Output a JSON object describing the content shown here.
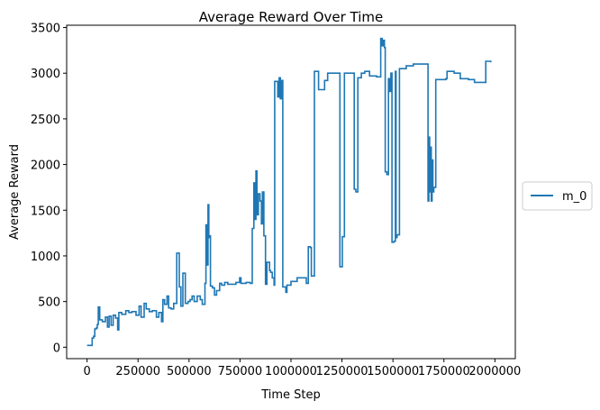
{
  "chart_data": {
    "type": "line",
    "title": "Average Reward Over Time",
    "xlabel": "Time Step",
    "ylabel": "Average Reward",
    "xlim": [
      -100000,
      2100000
    ],
    "ylim": [
      -125,
      3525
    ],
    "xticks": [
      0,
      250000,
      500000,
      750000,
      1000000,
      1250000,
      1500000,
      1750000,
      2000000
    ],
    "xtick_labels": [
      "0",
      "250000",
      "500000",
      "750000",
      "1000000",
      "1250000",
      "1500000",
      "1750000",
      "2000000"
    ],
    "yticks": [
      0,
      500,
      1000,
      1500,
      2000,
      2500,
      3000,
      3500
    ],
    "ytick_labels": [
      "0",
      "500",
      "1000",
      "1500",
      "2000",
      "2500",
      "3000",
      "3500"
    ],
    "grid": false,
    "legend_position": "right",
    "step": true,
    "series": [
      {
        "name": "m_0",
        "color": "#1f77b4",
        "points": [
          [
            0,
            20
          ],
          [
            20000,
            20
          ],
          [
            25000,
            100
          ],
          [
            32000,
            120
          ],
          [
            38000,
            200
          ],
          [
            45000,
            210
          ],
          [
            50000,
            250
          ],
          [
            55000,
            440
          ],
          [
            62000,
            300
          ],
          [
            75000,
            280
          ],
          [
            90000,
            330
          ],
          [
            100000,
            220
          ],
          [
            108000,
            340
          ],
          [
            118000,
            240
          ],
          [
            128000,
            350
          ],
          [
            140000,
            320
          ],
          [
            150000,
            190
          ],
          [
            156000,
            380
          ],
          [
            170000,
            360
          ],
          [
            190000,
            400
          ],
          [
            205000,
            380
          ],
          [
            220000,
            390
          ],
          [
            240000,
            350
          ],
          [
            255000,
            450
          ],
          [
            265000,
            330
          ],
          [
            280000,
            480
          ],
          [
            290000,
            420
          ],
          [
            305000,
            390
          ],
          [
            320000,
            400
          ],
          [
            340000,
            330
          ],
          [
            352000,
            380
          ],
          [
            365000,
            280
          ],
          [
            372000,
            520
          ],
          [
            380000,
            470
          ],
          [
            392000,
            560
          ],
          [
            400000,
            430
          ],
          [
            412000,
            420
          ],
          [
            425000,
            480
          ],
          [
            440000,
            1030
          ],
          [
            452000,
            660
          ],
          [
            460000,
            450
          ],
          [
            470000,
            810
          ],
          [
            482000,
            480
          ],
          [
            495000,
            500
          ],
          [
            505000,
            520
          ],
          [
            515000,
            560
          ],
          [
            525000,
            500
          ],
          [
            540000,
            560
          ],
          [
            555000,
            520
          ],
          [
            565000,
            470
          ],
          [
            578000,
            700
          ],
          [
            583000,
            1340
          ],
          [
            588000,
            900
          ],
          [
            593000,
            1560
          ],
          [
            597000,
            1200
          ],
          [
            600000,
            1220
          ],
          [
            605000,
            670
          ],
          [
            615000,
            650
          ],
          [
            625000,
            570
          ],
          [
            635000,
            620
          ],
          [
            650000,
            700
          ],
          [
            660000,
            680
          ],
          [
            675000,
            710
          ],
          [
            690000,
            690
          ],
          [
            710000,
            690
          ],
          [
            730000,
            710
          ],
          [
            748000,
            760
          ],
          [
            755000,
            700
          ],
          [
            780000,
            710
          ],
          [
            800000,
            700
          ],
          [
            810000,
            1300
          ],
          [
            818000,
            1800
          ],
          [
            823000,
            1400
          ],
          [
            828000,
            1930
          ],
          [
            833000,
            1450
          ],
          [
            840000,
            1680
          ],
          [
            848000,
            1600
          ],
          [
            855000,
            1350
          ],
          [
            860000,
            1700
          ],
          [
            867000,
            1220
          ],
          [
            875000,
            690
          ],
          [
            882000,
            930
          ],
          [
            895000,
            840
          ],
          [
            900000,
            820
          ],
          [
            908000,
            760
          ],
          [
            917000,
            680
          ],
          [
            920000,
            2910
          ],
          [
            935000,
            2740
          ],
          [
            942000,
            2950
          ],
          [
            948000,
            2720
          ],
          [
            955000,
            2920
          ],
          [
            960000,
            660
          ],
          [
            975000,
            600
          ],
          [
            980000,
            680
          ],
          [
            1000000,
            720
          ],
          [
            1030000,
            760
          ],
          [
            1060000,
            760
          ],
          [
            1075000,
            700
          ],
          [
            1085000,
            1100
          ],
          [
            1095000,
            1090
          ],
          [
            1100000,
            780
          ],
          [
            1115000,
            3020
          ],
          [
            1135000,
            2820
          ],
          [
            1165000,
            2920
          ],
          [
            1180000,
            3000
          ],
          [
            1215000,
            3000
          ],
          [
            1230000,
            3000
          ],
          [
            1240000,
            880
          ],
          [
            1252000,
            1210
          ],
          [
            1262000,
            3000
          ],
          [
            1300000,
            3000
          ],
          [
            1310000,
            1730
          ],
          [
            1318000,
            1700
          ],
          [
            1328000,
            2950
          ],
          [
            1345000,
            3000
          ],
          [
            1362000,
            3020
          ],
          [
            1385000,
            2970
          ],
          [
            1420000,
            2960
          ],
          [
            1440000,
            3380
          ],
          [
            1447000,
            3300
          ],
          [
            1452000,
            3360
          ],
          [
            1458000,
            3280
          ],
          [
            1462000,
            1920
          ],
          [
            1470000,
            1890
          ],
          [
            1478000,
            2940
          ],
          [
            1485000,
            2800
          ],
          [
            1490000,
            3000
          ],
          [
            1495000,
            1150
          ],
          [
            1505000,
            1160
          ],
          [
            1512000,
            3020
          ],
          [
            1515000,
            1200
          ],
          [
            1520000,
            1230
          ],
          [
            1532000,
            3050
          ],
          [
            1565000,
            3080
          ],
          [
            1600000,
            3100
          ],
          [
            1650000,
            3100
          ],
          [
            1665000,
            3100
          ],
          [
            1672000,
            1600
          ],
          [
            1676000,
            2300
          ],
          [
            1680000,
            1700
          ],
          [
            1684000,
            2190
          ],
          [
            1688000,
            1600
          ],
          [
            1692000,
            2050
          ],
          [
            1696000,
            1700
          ],
          [
            1700000,
            1750
          ],
          [
            1710000,
            2930
          ],
          [
            1760000,
            2940
          ],
          [
            1765000,
            3020
          ],
          [
            1800000,
            3000
          ],
          [
            1830000,
            2940
          ],
          [
            1870000,
            2930
          ],
          [
            1900000,
            2900
          ],
          [
            1945000,
            2900
          ],
          [
            1955000,
            3130
          ],
          [
            1980000,
            3120
          ]
        ]
      }
    ]
  }
}
